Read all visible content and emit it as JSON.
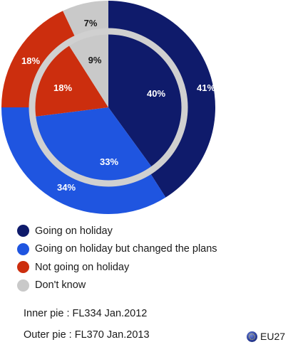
{
  "chart_data": {
    "type": "pie",
    "colors": {
      "going_on_holiday": "#0f1b6b",
      "changed_plans": "#1f55e0",
      "not_going": "#cc2e0e",
      "dont_know": "#c9c9c9",
      "separator_ring": "#d0d0d0"
    },
    "series": [
      {
        "name": "Inner pie : FL334 Jan.2012",
        "values": [
          40,
          33,
          18,
          9
        ]
      },
      {
        "name": "Outer pie : FL370 Jan.2013",
        "values": [
          41,
          34,
          18,
          7
        ]
      }
    ],
    "categories": [
      "Going on holiday",
      "Going on holiday but changed the plans",
      "Not going on holiday",
      "Don't know"
    ],
    "labels": {
      "inner": [
        "40%",
        "33%",
        "18%",
        "9%"
      ],
      "outer": [
        "41%",
        "34%",
        "18%",
        "7%"
      ]
    }
  },
  "legend": {
    "items": [
      {
        "label": "Going on holiday",
        "color": "#0f1b6b"
      },
      {
        "label": "Going on holiday but changed the plans",
        "color": "#1f55e0"
      },
      {
        "label": "Not going on holiday",
        "color": "#cc2e0e"
      },
      {
        "label": "Don't know",
        "color": "#c9c9c9"
      }
    ]
  },
  "sources": {
    "inner": "Inner pie :  FL334 Jan.2012",
    "outer": "Outer pie :  FL370 Jan.2013"
  },
  "badge": {
    "label": "EU27",
    "icon": "eu-flag-icon"
  }
}
